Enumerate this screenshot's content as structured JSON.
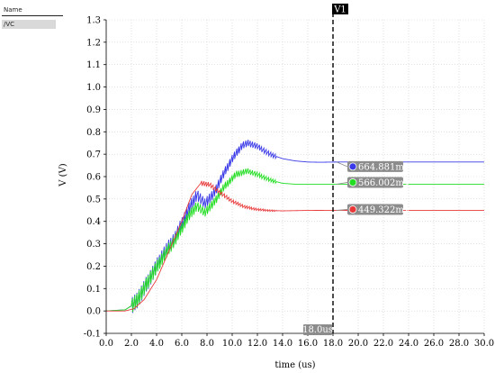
{
  "legend": {
    "header": "Name",
    "items": [
      {
        "label": "/VC"
      }
    ]
  },
  "chart_data": {
    "type": "line",
    "xlabel": "time (us)",
    "ylabel": "V (V)",
    "xlim": [
      0,
      30
    ],
    "ylim": [
      -0.1,
      1.3
    ],
    "xticks": [
      "0.0",
      "2.0",
      "4.0",
      "6.0",
      "8.0",
      "10.0",
      "12.0",
      "14.0",
      "16.0",
      "18.0",
      "20.0",
      "22.0",
      "24.0",
      "26.0",
      "28.0",
      "30.0"
    ],
    "yticks": [
      "-0.1",
      "0.0",
      "0.1",
      "0.2",
      "0.3",
      "0.4",
      "0.5",
      "0.6",
      "0.7",
      "0.8",
      "0.9",
      "1.0",
      "1.1",
      "1.2",
      "1.3"
    ],
    "grid": "dotted",
    "marker": {
      "label": "V1",
      "x": 18.0,
      "x_label": "18.0us"
    },
    "series": [
      {
        "color": "#3a3ae8",
        "points": [
          [
            0,
            0
          ],
          [
            1.5,
            0.005
          ],
          [
            2.2,
            0.03
          ],
          [
            2.8,
            0.08
          ],
          [
            3.5,
            0.15
          ],
          [
            4.5,
            0.25
          ],
          [
            5.5,
            0.33
          ],
          [
            6.5,
            0.45
          ],
          [
            7.2,
            0.52
          ],
          [
            7.8,
            0.48
          ],
          [
            8.5,
            0.52
          ],
          [
            9.2,
            0.6
          ],
          [
            10.0,
            0.68
          ],
          [
            10.8,
            0.74
          ],
          [
            11.3,
            0.75
          ],
          [
            12.0,
            0.735
          ],
          [
            13.0,
            0.7
          ],
          [
            14.0,
            0.68
          ],
          [
            15.0,
            0.67
          ],
          [
            16.0,
            0.665
          ],
          [
            17.0,
            0.664
          ],
          [
            18.0,
            0.664881
          ],
          [
            20,
            0.665
          ],
          [
            25,
            0.665
          ],
          [
            30,
            0.665
          ]
        ],
        "ripple": {
          "from": 2.0,
          "to": 13.5,
          "amp_start": 0.04,
          "amp_end": 0.01
        },
        "readout": "664.881mV"
      },
      {
        "color": "#22dd22",
        "points": [
          [
            0,
            0
          ],
          [
            1.5,
            0.005
          ],
          [
            2.2,
            0.03
          ],
          [
            2.8,
            0.08
          ],
          [
            3.5,
            0.15
          ],
          [
            4.5,
            0.24
          ],
          [
            5.5,
            0.32
          ],
          [
            6.5,
            0.42
          ],
          [
            7.2,
            0.47
          ],
          [
            7.8,
            0.44
          ],
          [
            8.5,
            0.48
          ],
          [
            9.3,
            0.55
          ],
          [
            10.3,
            0.61
          ],
          [
            11.2,
            0.625
          ],
          [
            12.0,
            0.61
          ],
          [
            13.0,
            0.585
          ],
          [
            14.0,
            0.57
          ],
          [
            15.0,
            0.566
          ],
          [
            16.0,
            0.566
          ],
          [
            18.0,
            0.566002
          ],
          [
            20,
            0.566
          ],
          [
            25,
            0.566
          ],
          [
            30,
            0.566
          ]
        ],
        "ripple": {
          "from": 2.0,
          "to": 13.5,
          "amp_start": 0.035,
          "amp_end": 0.008
        },
        "readout": "566.002mV"
      },
      {
        "color": "#e83a3a",
        "points": [
          [
            0,
            0
          ],
          [
            1.5,
            0
          ],
          [
            2.2,
            0.01
          ],
          [
            3.0,
            0.05
          ],
          [
            4.0,
            0.14
          ],
          [
            5.0,
            0.27
          ],
          [
            6.0,
            0.4
          ],
          [
            6.8,
            0.52
          ],
          [
            7.5,
            0.57
          ],
          [
            8.2,
            0.565
          ],
          [
            9.0,
            0.53
          ],
          [
            10.0,
            0.49
          ],
          [
            11.0,
            0.465
          ],
          [
            12.0,
            0.453
          ],
          [
            13.0,
            0.448
          ],
          [
            14.0,
            0.447
          ],
          [
            15.0,
            0.448
          ],
          [
            16.0,
            0.449
          ],
          [
            18.0,
            0.449322
          ],
          [
            20,
            0.449
          ],
          [
            25,
            0.449
          ],
          [
            30,
            0.449
          ]
        ],
        "ripple": {
          "from": 7.5,
          "to": 13.5,
          "amp_start": 0.012,
          "amp_end": 0.003
        },
        "readout": "449.322mV"
      }
    ]
  }
}
